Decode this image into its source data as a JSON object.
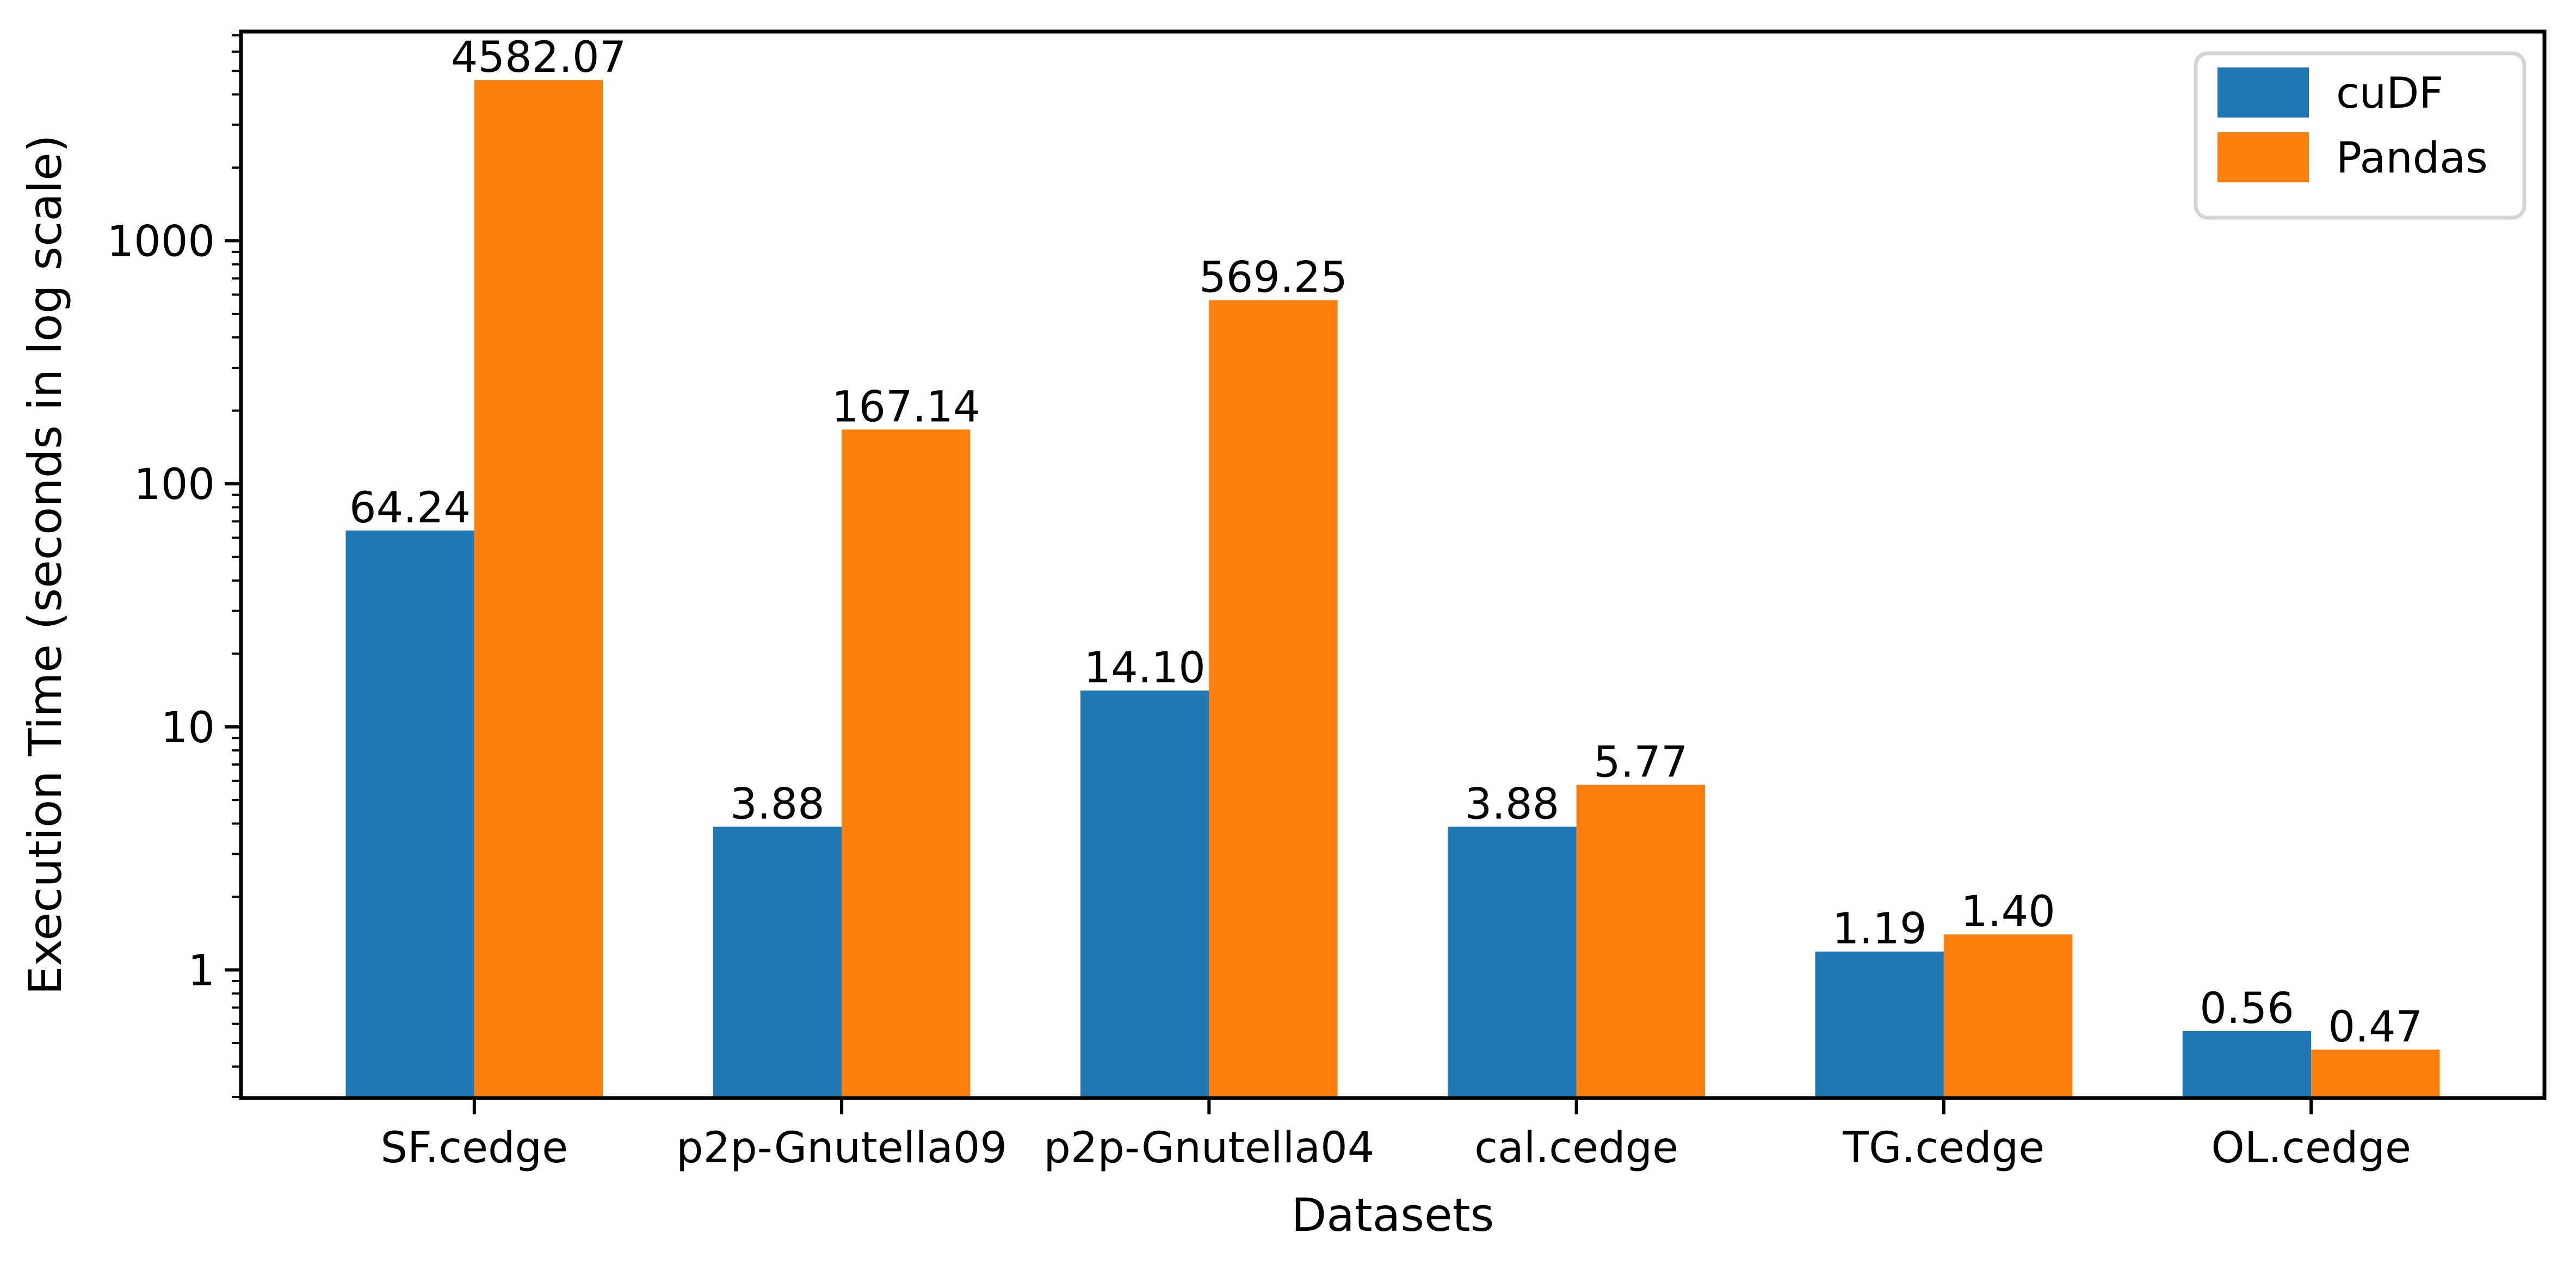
{
  "figure": {
    "background": "#ffffff",
    "axis_color": "#000000"
  },
  "chart_data": {
    "type": "bar",
    "title": "",
    "xlabel": "Datasets",
    "ylabel": "Execution Time (seconds in log scale)",
    "categories": [
      "SF.cedge",
      "p2p-Gnutella09",
      "p2p-Gnutella04",
      "cal.cedge",
      "TG.cedge",
      "OL.cedge"
    ],
    "series": [
      {
        "name": "cuDF",
        "color": "#1f77b4",
        "values": [
          64.24,
          3.88,
          14.1,
          3.88,
          1.19,
          0.56
        ]
      },
      {
        "name": "Pandas",
        "color": "#ff7f0e",
        "values": [
          4582.07,
          167.14,
          569.25,
          5.77,
          1.4,
          0.47
        ]
      }
    ],
    "bar_value_labels": [
      [
        "64.24",
        "3.88",
        "14.10",
        "3.88",
        "1.19",
        "0.56"
      ],
      [
        "4582.07",
        "167.14",
        "569.25",
        "5.77",
        "1.40",
        "0.47"
      ]
    ],
    "yscale": "log",
    "yticks": [
      1,
      10,
      100,
      1000
    ],
    "ytick_labels": [
      "1",
      "10",
      "100",
      "1000"
    ],
    "ylim": [
      0.297,
      7254
    ],
    "xlim": [
      -0.635,
      5.635
    ],
    "bar_width": 0.35,
    "grid": false,
    "legend_position": "upper right"
  }
}
